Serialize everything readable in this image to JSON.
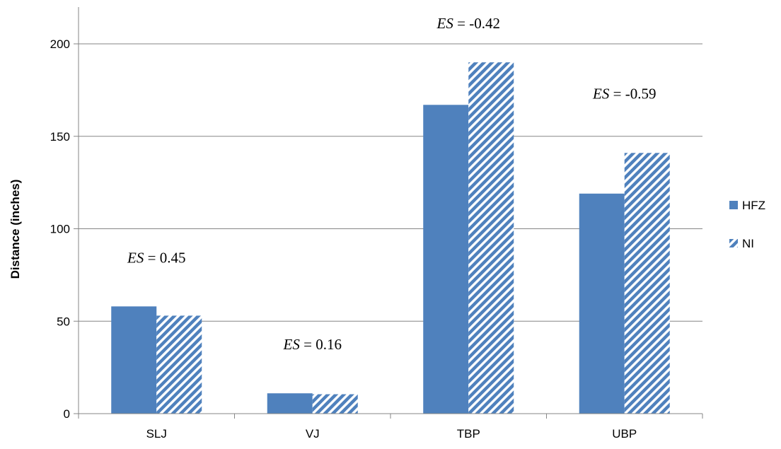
{
  "chart_data": {
    "type": "bar",
    "categories": [
      "SLJ",
      "VJ",
      "TBP",
      "UBP"
    ],
    "series": [
      {
        "name": "HFZ",
        "values": [
          58,
          11,
          167,
          119
        ],
        "color": "#4f81bd",
        "pattern": "solid"
      },
      {
        "name": "NI",
        "values": [
          53,
          10.5,
          190,
          141
        ],
        "color": "#4f81bd",
        "pattern": "diagonal-stripes"
      }
    ],
    "title": "",
    "xlabel": "",
    "ylabel": "Distance (inches)",
    "ylim": [
      0,
      200
    ],
    "yticks": [
      "0",
      "50",
      "100",
      "150",
      "200"
    ],
    "grid": true,
    "legend_position": "right",
    "annotations": [
      {
        "category": "SLJ",
        "prefix": "ES",
        "text": " = 0.45"
      },
      {
        "category": "VJ",
        "prefix": "ES",
        "text": " = 0.16"
      },
      {
        "category": "TBP",
        "prefix": "ES",
        "text": " = -0.42"
      },
      {
        "category": "UBP",
        "prefix": "ES",
        "text": " = -0.59"
      }
    ]
  }
}
